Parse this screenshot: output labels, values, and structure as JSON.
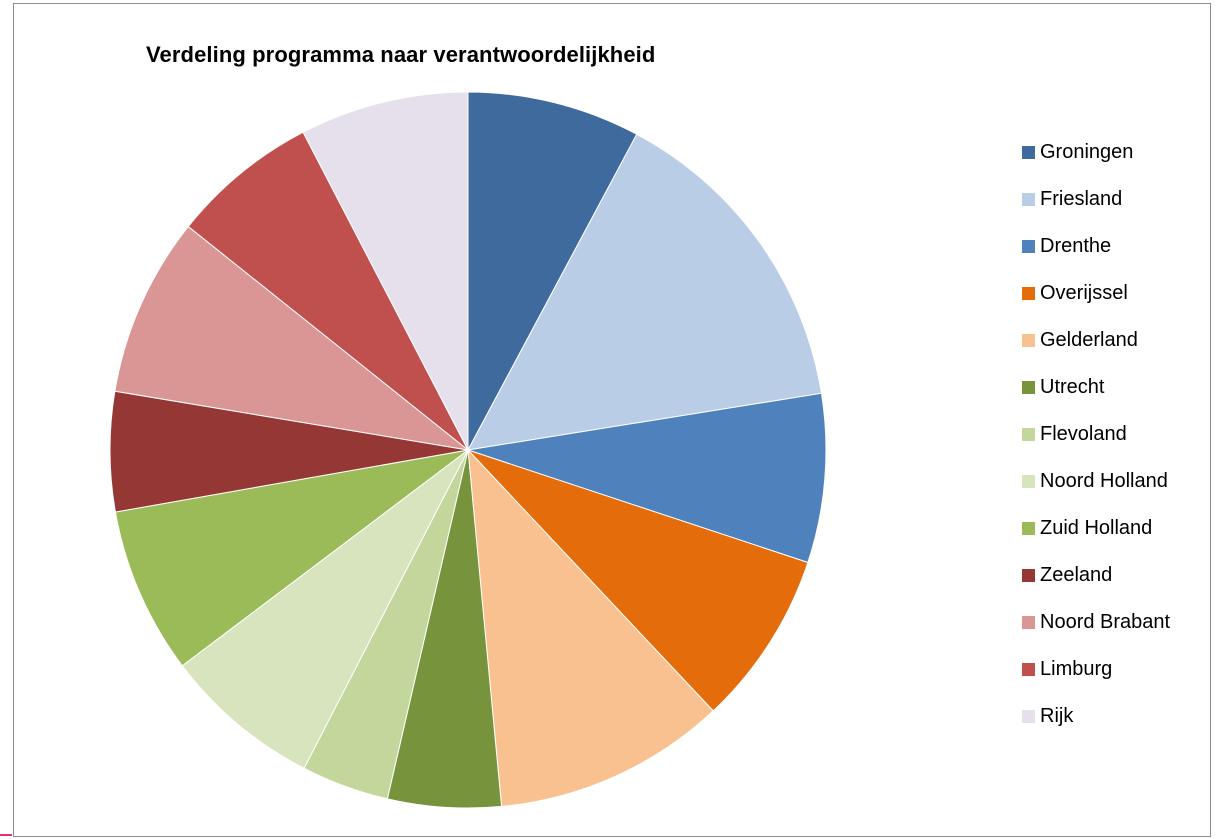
{
  "chart_data": {
    "type": "pie",
    "title": "Verdeling programma naar verantwoordelijkheid",
    "legend_position": "right",
    "start_angle_deg": 0,
    "direction": "clockwise",
    "slices": [
      {
        "label": "Groningen",
        "value": 8.1,
        "color": "#3f6a9e"
      },
      {
        "label": "Friesland",
        "value": 15.2,
        "color": "#b9cde6"
      },
      {
        "label": "Drenthe",
        "value": 7.9,
        "color": "#4f81bd"
      },
      {
        "label": "Overijssel",
        "value": 8.2,
        "color": "#e46c0a"
      },
      {
        "label": "Gelderland",
        "value": 10.9,
        "color": "#f9c090"
      },
      {
        "label": "Utrecht",
        "value": 5.3,
        "color": "#77933c"
      },
      {
        "label": "Flevoland",
        "value": 4.1,
        "color": "#c3d69b"
      },
      {
        "label": "Noord Holland",
        "value": 7.4,
        "color": "#d7e4bd"
      },
      {
        "label": "Zuid Holland",
        "value": 7.8,
        "color": "#9bbb59"
      },
      {
        "label": "Zeeland",
        "value": 5.6,
        "color": "#953735"
      },
      {
        "label": "Noord Brabant",
        "value": 8.4,
        "color": "#d99694"
      },
      {
        "label": "Limburg",
        "value": 6.9,
        "color": "#c0504d"
      },
      {
        "label": "Rijk",
        "value": 7.9,
        "color": "#e6e0ec"
      }
    ]
  }
}
